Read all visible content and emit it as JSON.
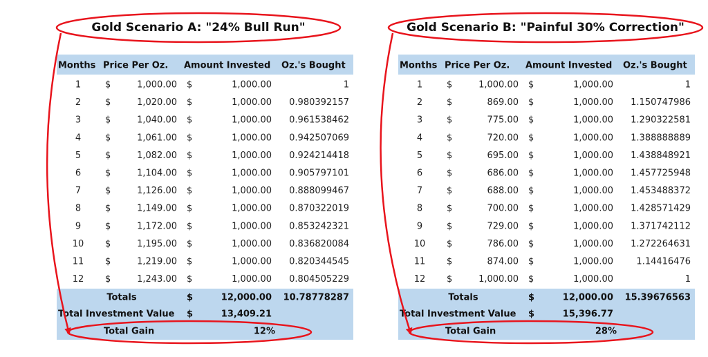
{
  "tables": [
    {
      "title": "Gold Scenario A: \"24% Bull Run\"",
      "headers": [
        "Months",
        "Price Per Oz.",
        "Amount Invested",
        "Oz.'s Bought"
      ],
      "rows": [
        [
          "1",
          "$",
          "1,000.00",
          "$",
          "1,000.00",
          "1"
        ],
        [
          "2",
          "$",
          "1,020.00",
          "$",
          "1,000.00",
          "0.980392157"
        ],
        [
          "3",
          "$",
          "1,040.00",
          "$",
          "1,000.00",
          "0.961538462"
        ],
        [
          "4",
          "$",
          "1,061.00",
          "$",
          "1,000.00",
          "0.942507069"
        ],
        [
          "5",
          "$",
          "1,082.00",
          "$",
          "1,000.00",
          "0.924214418"
        ],
        [
          "6",
          "$",
          "1,104.00",
          "$",
          "1,000.00",
          "0.905797101"
        ],
        [
          "7",
          "$",
          "1,126.00",
          "$",
          "1,000.00",
          "0.888099467"
        ],
        [
          "8",
          "$",
          "1,149.00",
          "$",
          "1,000.00",
          "0.870322019"
        ],
        [
          "9",
          "$",
          "1,172.00",
          "$",
          "1,000.00",
          "0.853242321"
        ],
        [
          "10",
          "$",
          "1,195.00",
          "$",
          "1,000.00",
          "0.836820084"
        ],
        [
          "11",
          "$",
          "1,219.00",
          "$",
          "1,000.00",
          "0.820344545"
        ],
        [
          "12",
          "$",
          "1,243.00",
          "$",
          "1,000.00",
          "0.804505229"
        ]
      ],
      "totals": [
        "Totals",
        "$",
        "12,000.00",
        "10.78778287"
      ],
      "total_value": [
        "Total Investment Value",
        "$",
        "13,409.21"
      ],
      "total_gain": [
        "Total Gain",
        "12%"
      ]
    },
    {
      "title": "Gold Scenario B: \"Painful 30% Correction\"",
      "headers": [
        "Months",
        "Price Per Oz.",
        "Amount Invested",
        "Oz.'s Bought"
      ],
      "rows": [
        [
          "1",
          "$",
          "1,000.00",
          "$",
          "1,000.00",
          "1"
        ],
        [
          "2",
          "$",
          "869.00",
          "$",
          "1,000.00",
          "1.150747986"
        ],
        [
          "3",
          "$",
          "775.00",
          "$",
          "1,000.00",
          "1.290322581"
        ],
        [
          "4",
          "$",
          "720.00",
          "$",
          "1,000.00",
          "1.388888889"
        ],
        [
          "5",
          "$",
          "695.00",
          "$",
          "1,000.00",
          "1.438848921"
        ],
        [
          "6",
          "$",
          "686.00",
          "$",
          "1,000.00",
          "1.457725948"
        ],
        [
          "7",
          "$",
          "688.00",
          "$",
          "1,000.00",
          "1.453488372"
        ],
        [
          "8",
          "$",
          "700.00",
          "$",
          "1,000.00",
          "1.428571429"
        ],
        [
          "9",
          "$",
          "729.00",
          "$",
          "1,000.00",
          "1.371742112"
        ],
        [
          "10",
          "$",
          "786.00",
          "$",
          "1,000.00",
          "1.272264631"
        ],
        [
          "11",
          "$",
          "874.00",
          "$",
          "1,000.00",
          "1.14416476"
        ],
        [
          "12",
          "$",
          "1,000.00",
          "$",
          "1,000.00",
          "1"
        ]
      ],
      "totals": [
        "Totals",
        "$",
        "12,000.00",
        "15.39676563"
      ],
      "total_value": [
        "Total Investment Value",
        "$",
        "15,396.77"
      ],
      "total_gain": [
        "Total Gain",
        "28%"
      ]
    }
  ]
}
